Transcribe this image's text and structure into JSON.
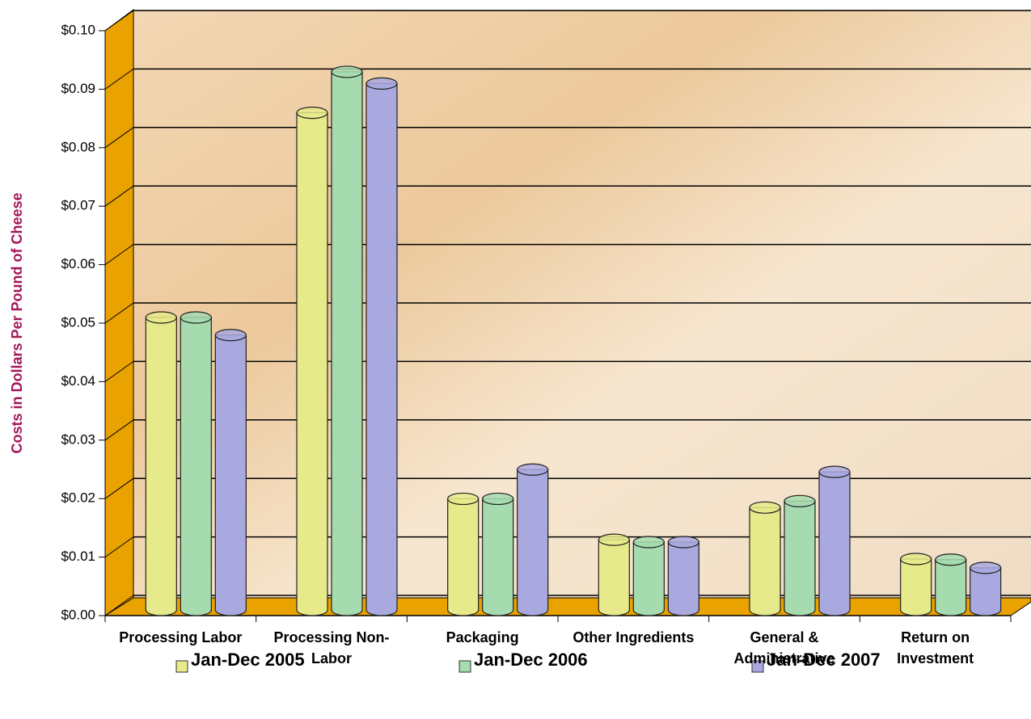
{
  "chart_data": {
    "type": "bar",
    "y_label": "Costs in Dollars Per Pound of Cheese",
    "categories": [
      "Processing Labor",
      "Processing Non-Labor",
      "Packaging",
      "Other Ingredients",
      "General & Administrative",
      "Return on Investment"
    ],
    "series": [
      {
        "name": "Jan-Dec 2005",
        "color": "#e6ea8a",
        "values": [
          0.05,
          0.085,
          0.019,
          0.012,
          0.0175,
          0.0087
        ]
      },
      {
        "name": "Jan-Dec 2006",
        "color": "#a6dbb0",
        "values": [
          0.05,
          0.092,
          0.019,
          0.0116,
          0.0186,
          0.0086
        ]
      },
      {
        "name": "Jan-Dec 2007",
        "color": "#a9a9df",
        "values": [
          0.047,
          0.09,
          0.024,
          0.0116,
          0.0236,
          0.0072
        ]
      }
    ],
    "ylim": [
      0,
      0.1
    ],
    "yticks": [
      {
        "value": 0,
        "label": "$0.00"
      },
      {
        "value": 0.01,
        "label": "$0.01"
      },
      {
        "value": 0.02,
        "label": "$0.02"
      },
      {
        "value": 0.03,
        "label": "$0.03"
      },
      {
        "value": 0.04,
        "label": "$0.04"
      },
      {
        "value": 0.05,
        "label": "$0.05"
      },
      {
        "value": 0.06,
        "label": "$0.06"
      },
      {
        "value": 0.07,
        "label": "$0.07"
      },
      {
        "value": 0.08,
        "label": "$0.08"
      },
      {
        "value": 0.09,
        "label": "$0.09"
      },
      {
        "value": 0.1,
        "label": "$0.10"
      }
    ],
    "grid": true
  }
}
